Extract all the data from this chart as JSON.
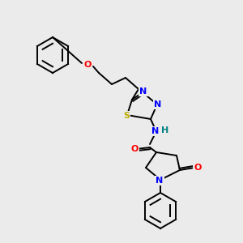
{
  "background_color": "#ebebeb",
  "atoms": {
    "colors": {
      "C": "#000000",
      "N": "#0000ff",
      "O": "#ff0000",
      "S": "#bbaa00",
      "H": "#008080"
    }
  },
  "figsize": [
    3.0,
    3.0
  ],
  "dpi": 100
}
